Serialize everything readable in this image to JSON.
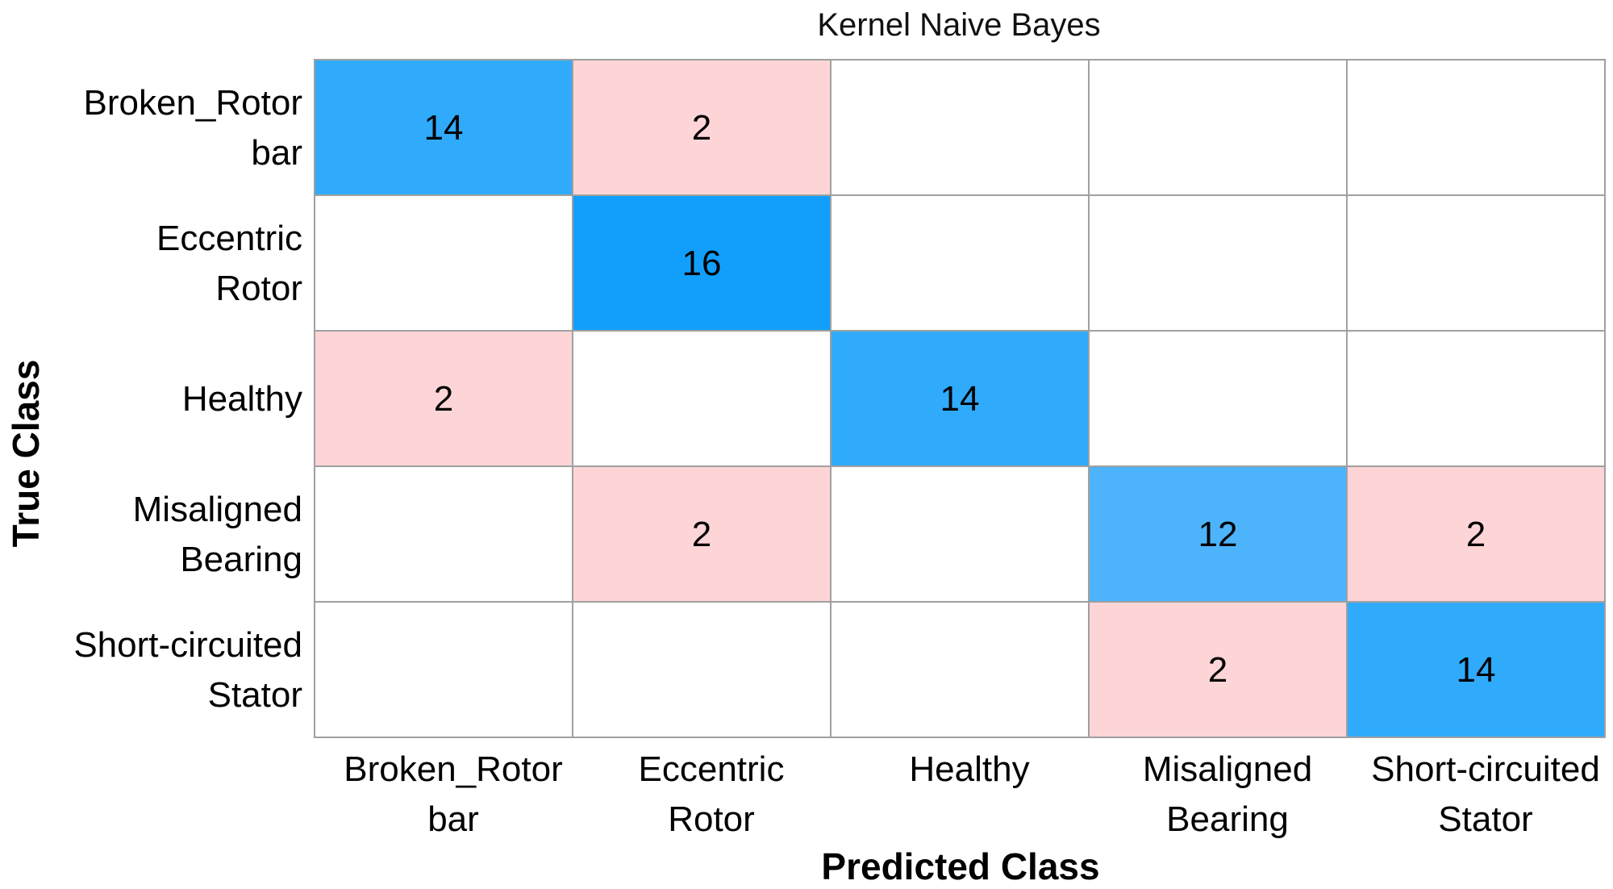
{
  "chart_data": {
    "type": "heatmap",
    "title": "Kernel Naive Bayes",
    "xlabel": "Predicted Class",
    "ylabel": "True Class",
    "x_categories": [
      [
        "Broken_Rotor",
        "bar"
      ],
      [
        "Eccentric",
        "Rotor"
      ],
      [
        "Healthy"
      ],
      [
        "Misaligned",
        "Bearing"
      ],
      [
        "Short-circuited",
        "Stator"
      ]
    ],
    "y_categories": [
      [
        "Broken_Rotor",
        "bar"
      ],
      [
        "Eccentric",
        "Rotor"
      ],
      [
        "Healthy"
      ],
      [
        "Misaligned",
        "Bearing"
      ],
      [
        "Short-circuited",
        "Stator"
      ]
    ],
    "matrix": [
      [
        14,
        2,
        0,
        0,
        0
      ],
      [
        0,
        16,
        0,
        0,
        0
      ],
      [
        2,
        0,
        14,
        0,
        0
      ],
      [
        0,
        2,
        0,
        12,
        2
      ],
      [
        0,
        0,
        0,
        2,
        14
      ]
    ],
    "colors": {
      "correct_max": "#129ffb",
      "correct_low": "#4db4fb",
      "error": "#fdd5d6",
      "empty": "#ffffff",
      "grid": "#a0a0a0"
    }
  }
}
